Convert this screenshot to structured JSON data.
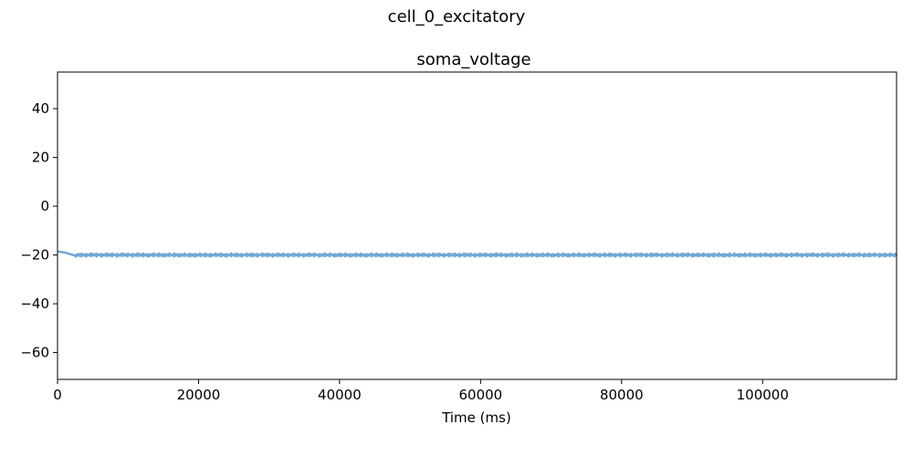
{
  "chart_data": {
    "type": "line",
    "suptitle": "cell_0_excitatory",
    "title": "soma_voltage",
    "xlabel": "Time (ms)",
    "ylabel": "",
    "xlim": [
      0,
      119000
    ],
    "ylim": [
      -71,
      55
    ],
    "xticks": [
      0,
      20000,
      40000,
      60000,
      80000,
      100000
    ],
    "xtick_labels": [
      "0",
      "20000",
      "40000",
      "60000",
      "80000",
      "100000"
    ],
    "yticks": [
      -60,
      -40,
      -20,
      0,
      20,
      40
    ],
    "ytick_labels": [
      "−60",
      "−40",
      "−20",
      "0",
      "20",
      "40"
    ],
    "grid": false,
    "series": [
      {
        "color": "#6fa8d6",
        "x": [
          0,
          1000,
          2000,
          2500,
          3000,
          10000,
          20000,
          30000,
          40000,
          50000,
          60000,
          70000,
          80000,
          90000,
          100000,
          110000,
          119000
        ],
        "y": [
          -18.5,
          -19.0,
          -19.8,
          -20.2,
          -20.0,
          -20.0,
          -20.0,
          -20.0,
          -20.0,
          -20.0,
          -20.0,
          -20.0,
          -20.0,
          -20.0,
          -20.0,
          -20.0,
          -20.0
        ],
        "noise_amplitude": 0.7
      }
    ]
  }
}
